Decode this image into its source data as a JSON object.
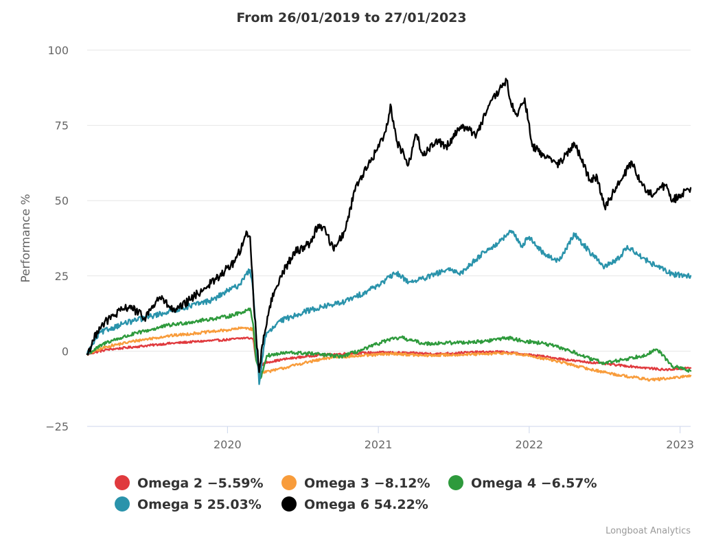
{
  "chart_data": {
    "type": "line",
    "title": "From 26/01/2019 to 27/01/2023",
    "ylabel": "Performance %",
    "xlabel": "",
    "ylim": [
      -25,
      100
    ],
    "yticks": [
      -25,
      0,
      25,
      50,
      75,
      100
    ],
    "ytick_labels": [
      "−25",
      "0",
      "25",
      "50",
      "75",
      "100"
    ],
    "xlim": [
      2019.07,
      2023.07
    ],
    "xticks": [
      2020,
      2021,
      2022,
      2023
    ],
    "xtick_labels": [
      "2020",
      "2021",
      "2022",
      "2023"
    ],
    "grid": true,
    "legend_position": "bottom",
    "credits": "Longboat Analytics",
    "series": [
      {
        "name": "Omega 2",
        "legend_label": "Omega 2 −5.59%",
        "color": "#e03a3e",
        "x": [
          2019.07,
          2019.2,
          2019.4,
          2019.6,
          2019.8,
          2020.0,
          2020.12,
          2020.17,
          2020.19,
          2020.21,
          2020.25,
          2020.4,
          2020.6,
          2020.8,
          2021.0,
          2021.2,
          2021.4,
          2021.6,
          2021.8,
          2021.95,
          2022.1,
          2022.3,
          2022.5,
          2022.7,
          2022.9,
          2023.07
        ],
        "y": [
          -1,
          0.5,
          1.5,
          2.5,
          3.2,
          3.8,
          4.4,
          4.2,
          -3,
          -5.5,
          -3.8,
          -2.5,
          -1.3,
          -0.8,
          -0.4,
          -0.6,
          -0.9,
          -0.4,
          -0.2,
          -0.9,
          -1.8,
          -3.2,
          -4.2,
          -5.2,
          -6.2,
          -5.59
        ]
      },
      {
        "name": "Omega 3",
        "legend_label": "Omega 3 −8.12%",
        "color": "#f89c3b",
        "x": [
          2019.07,
          2019.2,
          2019.4,
          2019.6,
          2019.8,
          2020.0,
          2020.12,
          2020.17,
          2020.19,
          2020.22,
          2020.3,
          2020.5,
          2020.7,
          2020.9,
          2021.1,
          2021.3,
          2021.5,
          2021.7,
          2021.85,
          2022.0,
          2022.2,
          2022.4,
          2022.6,
          2022.8,
          2022.95,
          2023.07
        ],
        "y": [
          -1,
          1.5,
          3.5,
          5,
          6,
          7,
          7.8,
          7.2,
          -3,
          -7,
          -6.5,
          -4,
          -2,
          -1.5,
          -0.8,
          -1.5,
          -1.2,
          -1.0,
          -0.6,
          -1.5,
          -3.5,
          -6,
          -8,
          -9.5,
          -9,
          -8.12
        ]
      },
      {
        "name": "Omega 4",
        "legend_label": "Omega 4 −6.57%",
        "color": "#2e9a3c",
        "x": [
          2019.07,
          2019.2,
          2019.4,
          2019.6,
          2019.8,
          2020.0,
          2020.1,
          2020.15,
          2020.17,
          2020.19,
          2020.22,
          2020.26,
          2020.4,
          2020.55,
          2020.75,
          2020.9,
          2021.05,
          2021.15,
          2021.3,
          2021.5,
          2021.7,
          2021.85,
          2021.95,
          2022.1,
          2022.25,
          2022.4,
          2022.5,
          2022.6,
          2022.75,
          2022.85,
          2022.95,
          2023.07
        ],
        "y": [
          -1,
          3,
          6,
          8.5,
          10,
          11.5,
          13,
          14.2,
          9,
          -3,
          -9,
          -1.5,
          -0.5,
          -0.8,
          -1.8,
          0.5,
          3.5,
          4.5,
          2.5,
          2.8,
          3.2,
          4.5,
          3.5,
          2.5,
          0.5,
          -2.5,
          -4,
          -3,
          -1.5,
          0.5,
          -5,
          -6.57
        ]
      },
      {
        "name": "Omega 5",
        "legend_label": "Omega 5 25.03%",
        "color": "#2a93ab",
        "x": [
          2019.07,
          2019.15,
          2019.3,
          2019.45,
          2019.6,
          2019.75,
          2019.9,
          2020.0,
          2020.08,
          2020.12,
          2020.15,
          2020.17,
          2020.19,
          2020.21,
          2020.25,
          2020.35,
          2020.5,
          2020.65,
          2020.75,
          2020.85,
          2021.0,
          2021.12,
          2021.2,
          2021.3,
          2021.45,
          2021.55,
          2021.7,
          2021.8,
          2021.88,
          2021.95,
          2022.0,
          2022.1,
          2022.2,
          2022.3,
          2022.4,
          2022.5,
          2022.6,
          2022.65,
          2022.75,
          2022.85,
          2022.95,
          2023.07
        ],
        "y": [
          -1,
          6,
          9,
          11,
          13,
          15,
          17,
          20,
          22,
          25.5,
          27,
          20,
          5,
          -11,
          5,
          10,
          13,
          15,
          16,
          18,
          22,
          26,
          23,
          24,
          27,
          26,
          33,
          36,
          40,
          35,
          38,
          32,
          30,
          39,
          33,
          28,
          31,
          35,
          31,
          28,
          25.5,
          25.03
        ]
      },
      {
        "name": "Omega 6",
        "legend_label": "Omega 6 54.22%",
        "color": "#000000",
        "x": [
          2019.07,
          2019.15,
          2019.25,
          2019.35,
          2019.45,
          2019.55,
          2019.65,
          2019.75,
          2019.85,
          2019.95,
          2020.05,
          2020.1,
          2020.13,
          2020.15,
          2020.17,
          2020.19,
          2020.21,
          2020.23,
          2020.28,
          2020.35,
          2020.45,
          2020.55,
          2020.6,
          2020.65,
          2020.7,
          2020.78,
          2020.85,
          2020.95,
          2021.05,
          2021.08,
          2021.12,
          2021.2,
          2021.25,
          2021.3,
          2021.38,
          2021.45,
          2021.55,
          2021.65,
          2021.72,
          2021.78,
          2021.85,
          2021.88,
          2021.92,
          2021.97,
          2022.02,
          2022.1,
          2022.2,
          2022.3,
          2022.4,
          2022.45,
          2022.5,
          2022.55,
          2022.6,
          2022.68,
          2022.75,
          2022.8,
          2022.85,
          2022.9,
          2022.95,
          2023.0,
          2023.07
        ],
        "y": [
          -1,
          8,
          12,
          15,
          11,
          18,
          13,
          17,
          21,
          25,
          30,
          35,
          39.5,
          38,
          20,
          5,
          -7,
          2,
          15,
          25,
          33,
          36,
          42,
          40,
          34,
          40,
          55,
          63,
          73,
          82,
          70,
          62,
          72,
          65,
          70,
          68,
          75,
          72,
          80,
          85,
          90,
          82,
          78,
          84,
          68,
          65,
          62,
          69,
          57,
          58,
          48,
          52,
          56,
          63,
          55,
          52,
          54,
          55,
          50,
          52,
          54.22
        ]
      }
    ]
  }
}
